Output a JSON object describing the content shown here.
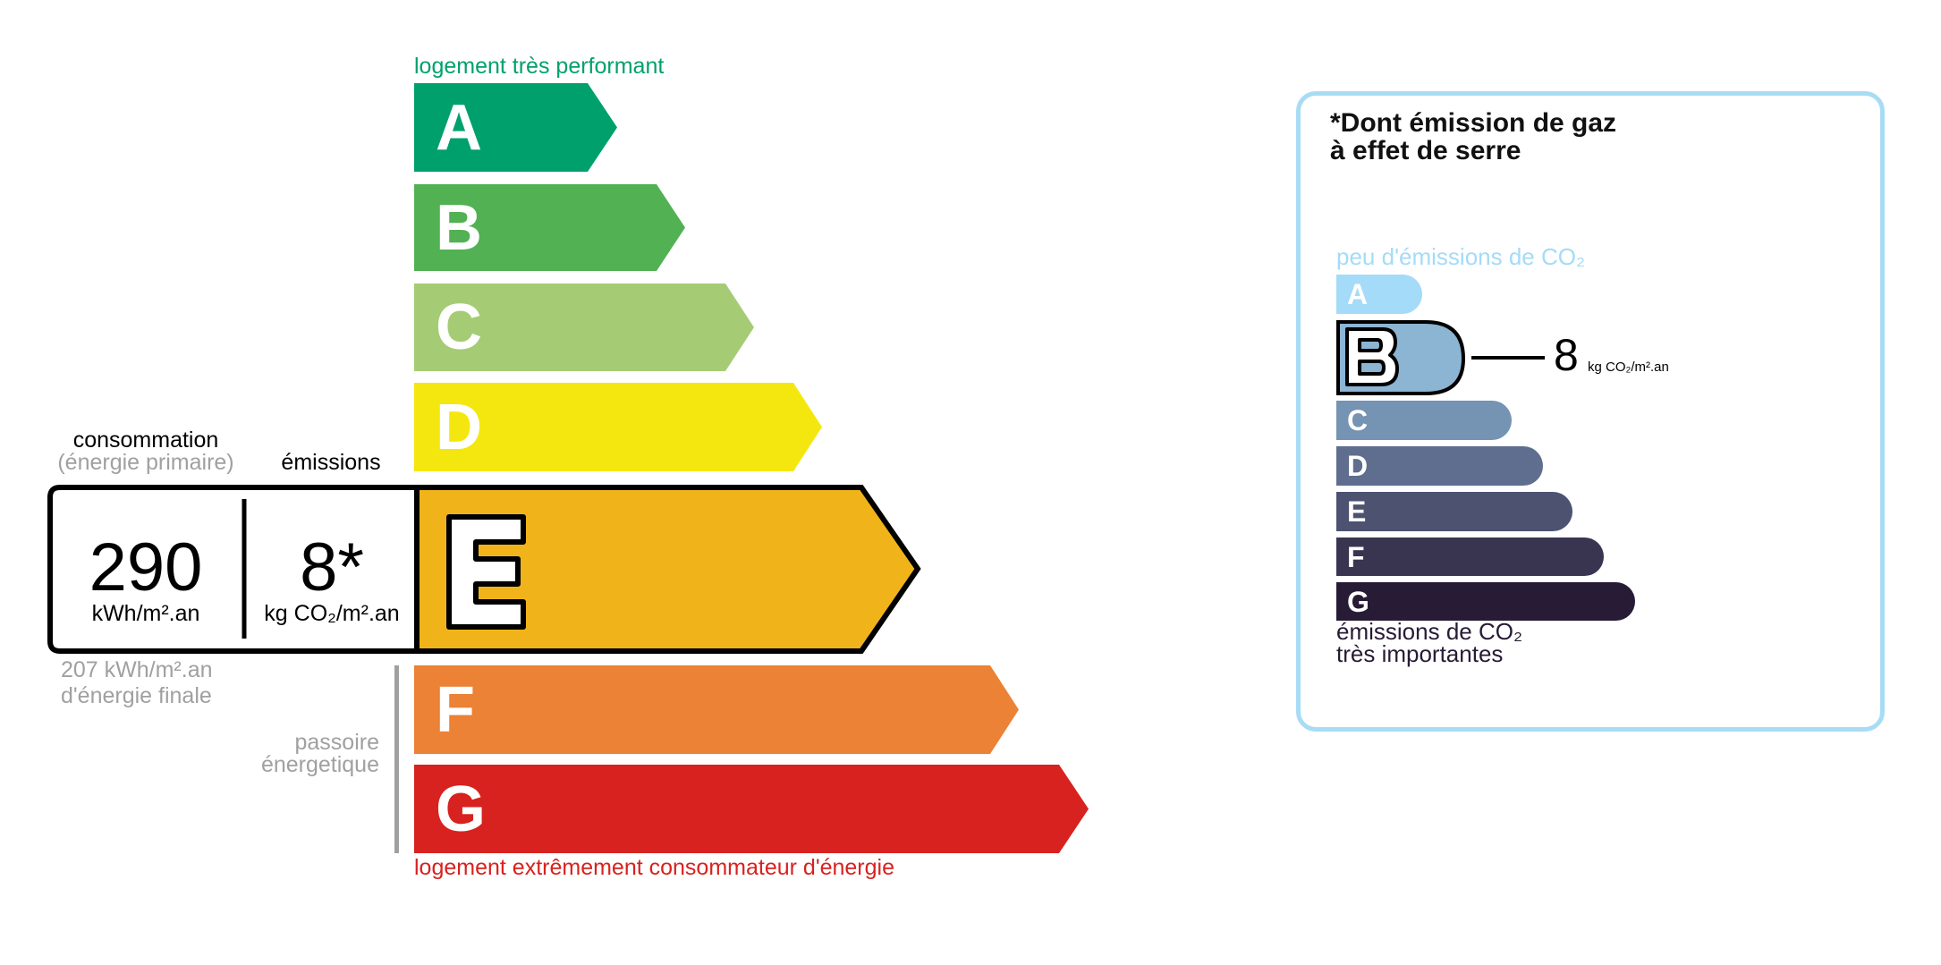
{
  "energy": {
    "top_label": "logement très performant",
    "bottom_label": "logement extrêmement consommateur d'énergie",
    "classes": [
      {
        "letter": "A",
        "color": "#00a06d"
      },
      {
        "letter": "B",
        "color": "#52b153"
      },
      {
        "letter": "C",
        "color": "#a5cc74"
      },
      {
        "letter": "D",
        "color": "#f4e70f"
      },
      {
        "letter": "E",
        "color": "#f0b41a"
      },
      {
        "letter": "F",
        "color": "#eb8235"
      },
      {
        "letter": "G",
        "color": "#d7221f"
      }
    ],
    "current_class": "E",
    "consumption_label": "consommation",
    "consumption_sub": "(énergie primaire)",
    "emissions_label": "émissions",
    "consumption_value": "290",
    "consumption_unit": "kWh/m².an",
    "emissions_value": "8*",
    "emissions_unit": "kg CO₂/m².an",
    "final_energy_value": "207 kWh/m².an",
    "final_energy_label": "d'énergie finale",
    "passoire_line1": "passoire",
    "passoire_line2": "énergetique"
  },
  "ges": {
    "title_line1": "*Dont émission de gaz",
    "title_line2": "à effet de serre",
    "top_label": "peu d'émissions de CO₂",
    "bottom_line1": "émissions de CO₂",
    "bottom_line2": "très importantes",
    "border_color": "#a8dcf5",
    "classes": [
      {
        "letter": "A",
        "color": "#a4dbf8"
      },
      {
        "letter": "B",
        "color": "#8cb4d3"
      },
      {
        "letter": "C",
        "color": "#7593b3"
      },
      {
        "letter": "D",
        "color": "#5f6e8f"
      },
      {
        "letter": "E",
        "color": "#4d5271"
      },
      {
        "letter": "F",
        "color": "#393551"
      },
      {
        "letter": "G",
        "color": "#281b35"
      }
    ],
    "current_class": "B",
    "value": "8",
    "unit": "kg CO₂/m².an"
  }
}
